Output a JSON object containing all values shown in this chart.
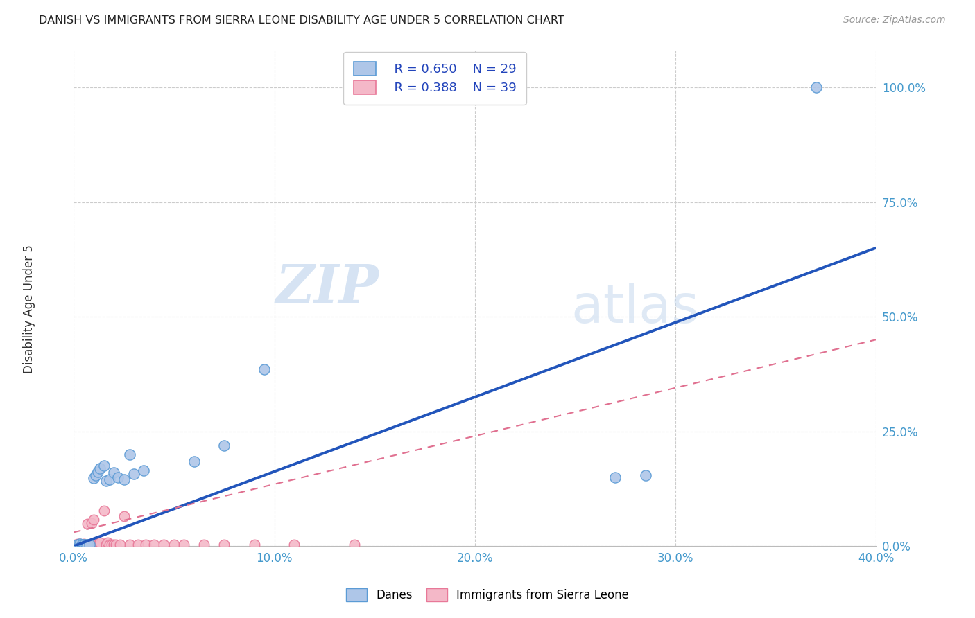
{
  "title": "DANISH VS IMMIGRANTS FROM SIERRA LEONE DISABILITY AGE UNDER 5 CORRELATION CHART",
  "source": "Source: ZipAtlas.com",
  "ylabel": "Disability Age Under 5",
  "xlim": [
    0.0,
    0.4
  ],
  "ylim": [
    0.0,
    1.08
  ],
  "xtick_vals": [
    0.0,
    0.1,
    0.2,
    0.3,
    0.4
  ],
  "xtick_labels": [
    "0.0%",
    "10.0%",
    "20.0%",
    "30.0%",
    "40.0%"
  ],
  "ytick_vals": [
    0.0,
    0.25,
    0.5,
    0.75,
    1.0
  ],
  "ytick_labels": [
    "0.0%",
    "25.0%",
    "50.0%",
    "75.0%",
    "100.0%"
  ],
  "danes_color": "#aec6e8",
  "danes_edge_color": "#5b9bd5",
  "immigrants_color": "#f4b8c8",
  "immigrants_edge_color": "#e87898",
  "blue_line_color": "#2255bb",
  "pink_line_color": "#e07090",
  "grid_color": "#cccccc",
  "background_color": "#ffffff",
  "watermark_zip": "ZIP",
  "watermark_atlas": "atlas",
  "legend_R_danes": "R = 0.650",
  "legend_N_danes": "N = 29",
  "legend_R_imm": "R = 0.388",
  "legend_N_imm": "N = 39",
  "danes_x": [
    0.001,
    0.002,
    0.003,
    0.003,
    0.004,
    0.005,
    0.005,
    0.006,
    0.007,
    0.008,
    0.01,
    0.011,
    0.012,
    0.013,
    0.015,
    0.016,
    0.018,
    0.02,
    0.022,
    0.025,
    0.028,
    0.03,
    0.035,
    0.06,
    0.075,
    0.095,
    0.27,
    0.285,
    0.37
  ],
  "danes_y": [
    0.002,
    0.003,
    0.003,
    0.005,
    0.003,
    0.003,
    0.004,
    0.003,
    0.004,
    0.003,
    0.148,
    0.155,
    0.162,
    0.17,
    0.175,
    0.142,
    0.145,
    0.16,
    0.15,
    0.145,
    0.2,
    0.158,
    0.165,
    0.185,
    0.22,
    0.385,
    0.15,
    0.155,
    1.0
  ],
  "immigrants_x": [
    0.001,
    0.002,
    0.002,
    0.003,
    0.003,
    0.004,
    0.005,
    0.005,
    0.006,
    0.007,
    0.007,
    0.008,
    0.009,
    0.01,
    0.011,
    0.012,
    0.013,
    0.013,
    0.015,
    0.016,
    0.017,
    0.018,
    0.019,
    0.02,
    0.021,
    0.023,
    0.025,
    0.028,
    0.032,
    0.036,
    0.04,
    0.045,
    0.05,
    0.055,
    0.065,
    0.075,
    0.09,
    0.11,
    0.14
  ],
  "immigrants_y": [
    0.003,
    0.003,
    0.005,
    0.003,
    0.005,
    0.003,
    0.003,
    0.005,
    0.003,
    0.003,
    0.048,
    0.003,
    0.05,
    0.058,
    0.003,
    0.003,
    0.003,
    0.008,
    0.078,
    0.003,
    0.008,
    0.003,
    0.003,
    0.003,
    0.003,
    0.003,
    0.065,
    0.003,
    0.003,
    0.003,
    0.003,
    0.003,
    0.003,
    0.003,
    0.003,
    0.003,
    0.003,
    0.003,
    0.003
  ],
  "blue_line_x": [
    0.0,
    0.4
  ],
  "blue_line_y": [
    0.0,
    0.65
  ],
  "pink_line_x": [
    0.0,
    0.4
  ],
  "pink_line_y": [
    0.03,
    0.45
  ]
}
